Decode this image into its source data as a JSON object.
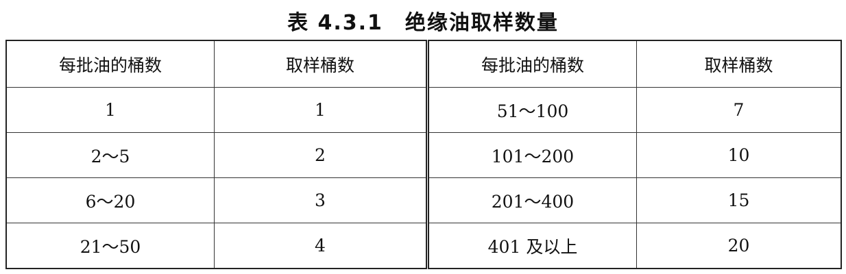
{
  "title": "表 4.3.1　绝缘油取样数量",
  "table": {
    "headers": [
      "每批油的桶数",
      "取样桶数",
      "每批油的桶数",
      "取样桶数"
    ],
    "rows": [
      [
        "1",
        "1",
        "51～100",
        "7"
      ],
      [
        "2～5",
        "2",
        "101～200",
        "10"
      ],
      [
        "6～20",
        "3",
        "201～400",
        "15"
      ],
      [
        "21～50",
        "4",
        "401 及以上",
        "20"
      ]
    ]
  }
}
